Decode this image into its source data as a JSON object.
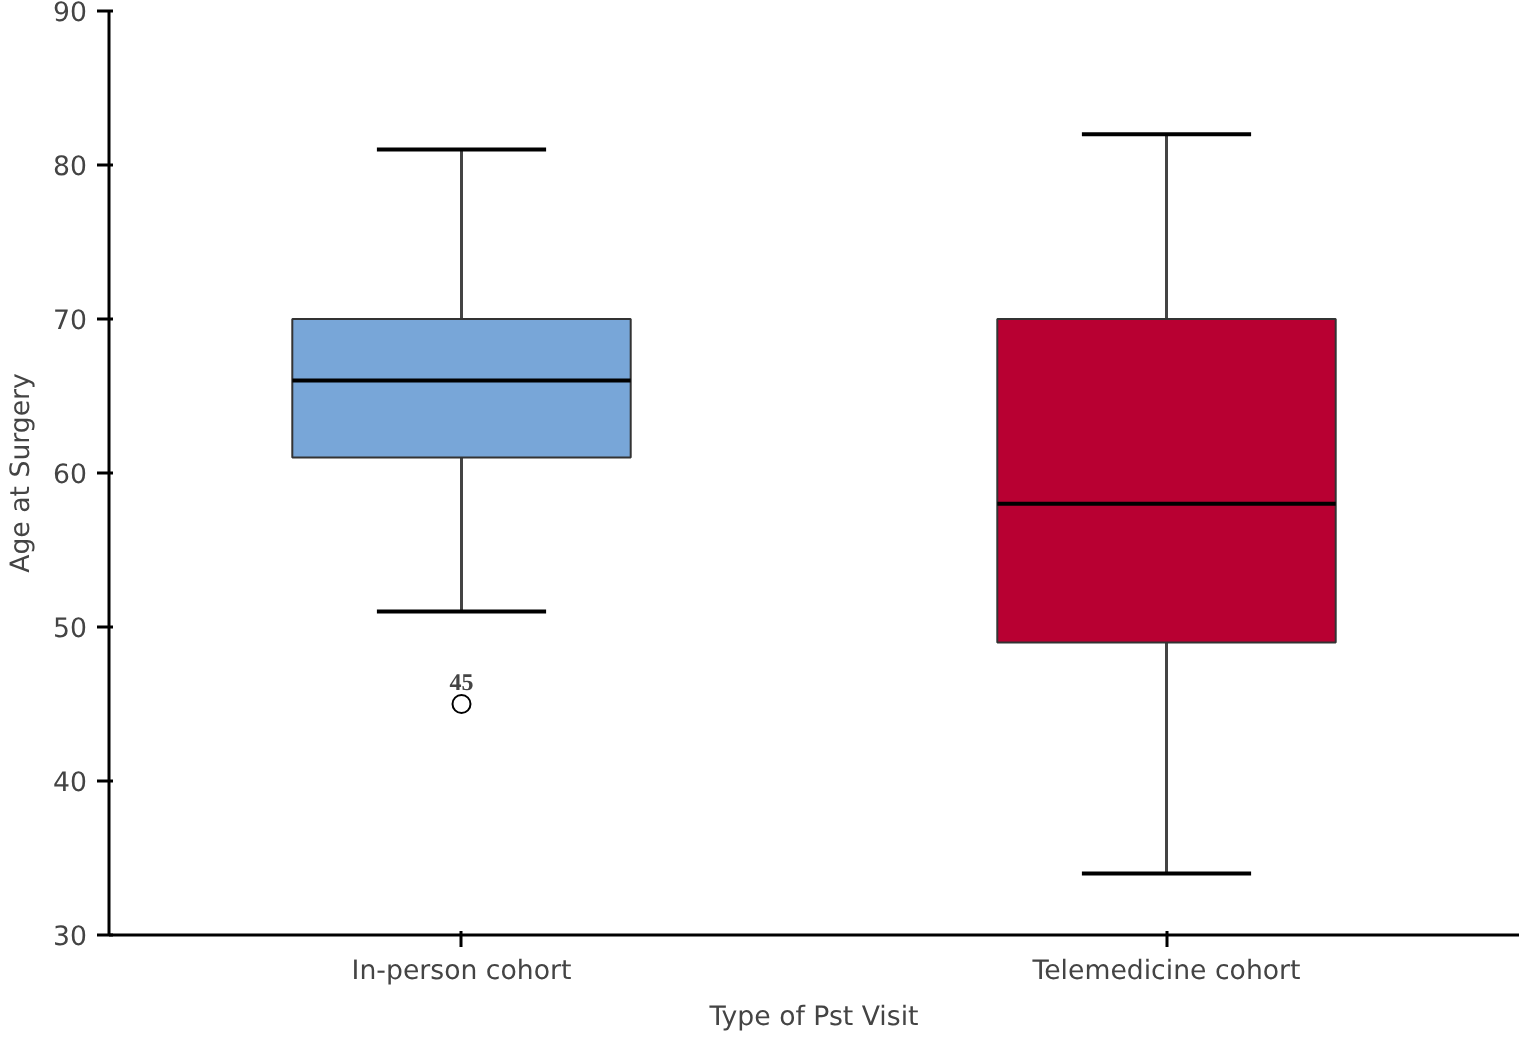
{
  "chart_data": {
    "type": "box",
    "xlabel": "Type of Pst Visit",
    "ylabel": "Age at Surgery",
    "categories": [
      "In-person cohort",
      "Telemedicine cohort"
    ],
    "boxes": [
      {
        "low": 51,
        "q1": 61,
        "median": 66,
        "q3": 70,
        "high": 81,
        "outliers": [
          45
        ]
      },
      {
        "low": 34,
        "q1": 49,
        "median": 58,
        "q3": 70,
        "high": 82
      }
    ],
    "colors": [
      "#78a6d8",
      "#b80032"
    ],
    "ylim": [
      30,
      90
    ],
    "yticks": [
      30,
      40,
      50,
      60,
      70,
      80,
      90
    ],
    "grid": false,
    "annotations": [
      "45"
    ]
  }
}
